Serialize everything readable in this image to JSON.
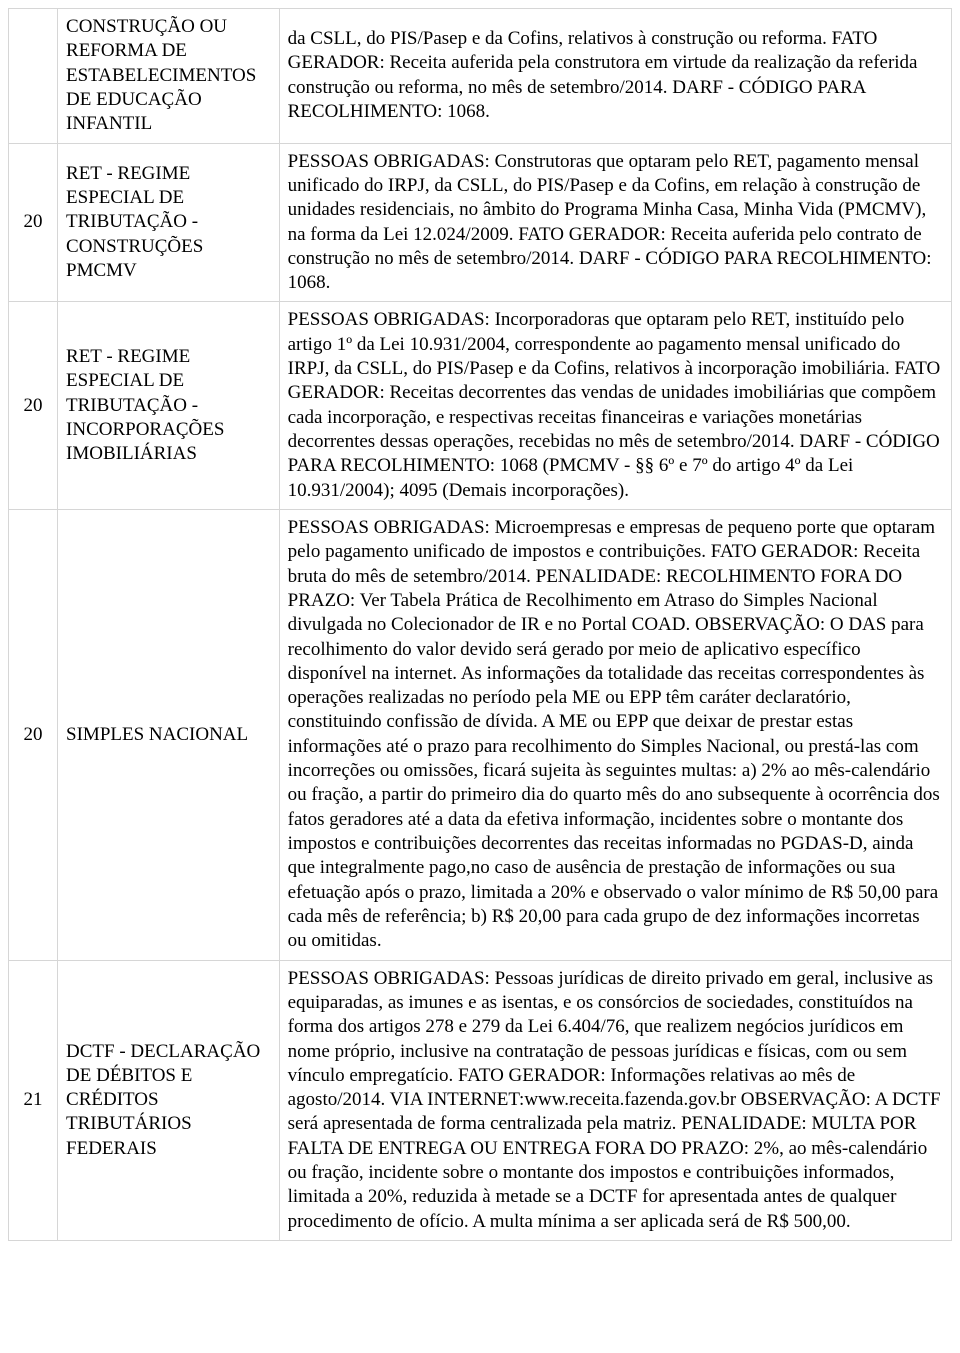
{
  "table": {
    "rows": [
      {
        "num": "",
        "title": "CONSTRUÇÃO OU REFORMA DE ESTABELECIMENTOS DE EDUCAÇÃO INFANTIL",
        "desc": "da CSLL, do PIS/Pasep e da Cofins, relativos à construção ou reforma. FATO GERADOR: Receita auferida pela construtora em virtude da realização da referida construção ou reforma, no mês de setembro/2014. DARF - CÓDIGO PARA RECOLHIMENTO: 1068."
      },
      {
        "num": "20",
        "title": "RET - REGIME ESPECIAL DE TRIBUTAÇÃO - CONSTRUÇÕES PMCMV",
        "desc": "PESSOAS OBRIGADAS: Construtoras que optaram pelo RET, pagamento mensal unificado do IRPJ, da CSLL, do PIS/Pasep e da Cofins, em relação à construção de unidades residenciais, no âmbito do Programa Minha Casa, Minha Vida (PMCMV), na forma da Lei 12.024/2009. FATO GERADOR: Receita auferida pelo contrato de construção no mês de setembro/2014. DARF - CÓDIGO PARA RECOLHIMENTO: 1068."
      },
      {
        "num": "20",
        "title": "RET - REGIME ESPECIAL DE TRIBUTAÇÃO - INCORPORAÇÕES IMOBILIÁRIAS",
        "desc": "PESSOAS OBRIGADAS: Incorporadoras que optaram pelo RET, instituído pelo artigo 1º da Lei 10.931/2004, correspondente ao pagamento mensal unificado do IRPJ, da CSLL, do PIS/Pasep e da Cofins, relativos à incorporação imobiliária. FATO GERADOR: Receitas decorrentes das vendas de unidades imobiliárias que compõem cada incorporação, e respectivas receitas financeiras e variações monetárias decorrentes dessas operações, recebidas no mês de setembro/2014. DARF - CÓDIGO PARA RECOLHIMENTO: 1068 (PMCMV - §§ 6º e 7º do artigo 4º da Lei 10.931/2004); 4095 (Demais incorporações)."
      },
      {
        "num": "20",
        "title": "SIMPLES NACIONAL",
        "desc": "PESSOAS OBRIGADAS: Microempresas e empresas de pequeno porte que optaram pelo pagamento unificado de impostos e contribuições. FATO GERADOR: Receita bruta do mês de setembro/2014. PENALIDADE: RECOLHIMENTO FORA DO PRAZO: Ver Tabela Prática de Recolhimento em Atraso do Simples Nacional divulgada no Colecionador de IR e no Portal COAD. OBSERVAÇÃO: O DAS para recolhimento do valor devido será gerado por meio de aplicativo específico disponível na internet. As informações da totalidade das receitas correspondentes às operações realizadas no período pela ME ou EPP têm caráter declaratório, constituindo confissão de dívida. A ME ou EPP que deixar de prestar estas informações até o prazo para recolhimento do Simples Nacional, ou prestá-las com incorreções ou omissões, ficará sujeita às seguintes multas: a) 2% ao mês-calendário ou fração, a partir do primeiro dia do quarto mês do ano subsequente à ocorrência dos fatos geradores até a data da efetiva informação, incidentes sobre o montante dos impostos e contribuições decorrentes das receitas informadas no PGDAS-D, ainda que integralmente pago,no caso de ausência de prestação de informações ou sua efetuação após o prazo, limitada a 20% e observado o valor mínimo de R$ 50,00 para cada mês de referência; b) R$ 20,00 para cada grupo de dez informações incorretas ou omitidas."
      },
      {
        "num": "21",
        "title": "DCTF - DECLARAÇÃO DE DÉBITOS E CRÉDITOS TRIBUTÁRIOS FEDERAIS",
        "desc": "PESSOAS OBRIGADAS: Pessoas jurídicas de direito privado em geral, inclusive as equiparadas, as imunes e as isentas, e os consórcios de sociedades, constituídos na forma dos artigos 278 e 279 da Lei 6.404/76, que realizem negócios jurídicos em nome próprio, inclusive na contratação de pessoas jurídicas e físicas, com ou sem vínculo empregatício. FATO GERADOR: Informações relativas ao mês de agosto/2014. VIA INTERNET:www.receita.fazenda.gov.br OBSERVAÇÃO: A DCTF será apresentada de forma centralizada pela matriz. PENALIDADE: MULTA POR FALTA DE ENTREGA OU ENTREGA FORA DO PRAZO: 2%, ao mês-calendário ou fração, incidente sobre o montante dos impostos e contribuições informados, limitada a 20%, reduzida à metade se a DCTF for apresentada antes de qualquer procedimento de ofício. A multa mínima a ser aplicada será de R$ 500,00."
      }
    ]
  }
}
